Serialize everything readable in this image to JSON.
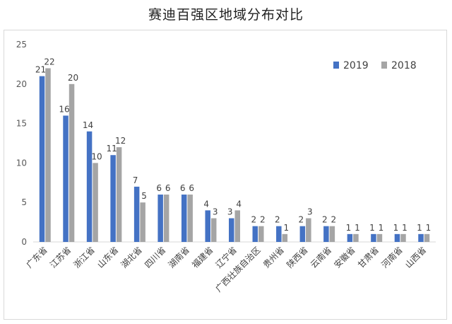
{
  "chart_data": {
    "type": "bar",
    "title": "赛迪百强区地域分布对比",
    "xlabel": "",
    "ylabel": "",
    "ylim": [
      0,
      25
    ],
    "yticks": [
      0,
      5,
      10,
      15,
      20,
      25
    ],
    "grid": false,
    "legend_position": "top-right",
    "categories": [
      "广东省",
      "江苏省",
      "浙江省",
      "山东省",
      "湖北省",
      "四川省",
      "湖南省",
      "福建省",
      "辽宁省",
      "广西壮族自治区",
      "贵州省",
      "陕西省",
      "云南省",
      "安徽省",
      "甘肃省",
      "河南省",
      "山西省"
    ],
    "series": [
      {
        "name": "2019",
        "color": "#4472C4",
        "values": [
          21,
          16,
          14,
          11,
          7,
          6,
          6,
          4,
          3,
          2,
          2,
          2,
          2,
          1,
          1,
          1,
          1
        ]
      },
      {
        "name": "2018",
        "color": "#A5A5A5",
        "values": [
          22,
          20,
          10,
          12,
          5,
          6,
          6,
          3,
          4,
          2,
          1,
          3,
          2,
          1,
          1,
          1,
          1
        ]
      }
    ]
  }
}
